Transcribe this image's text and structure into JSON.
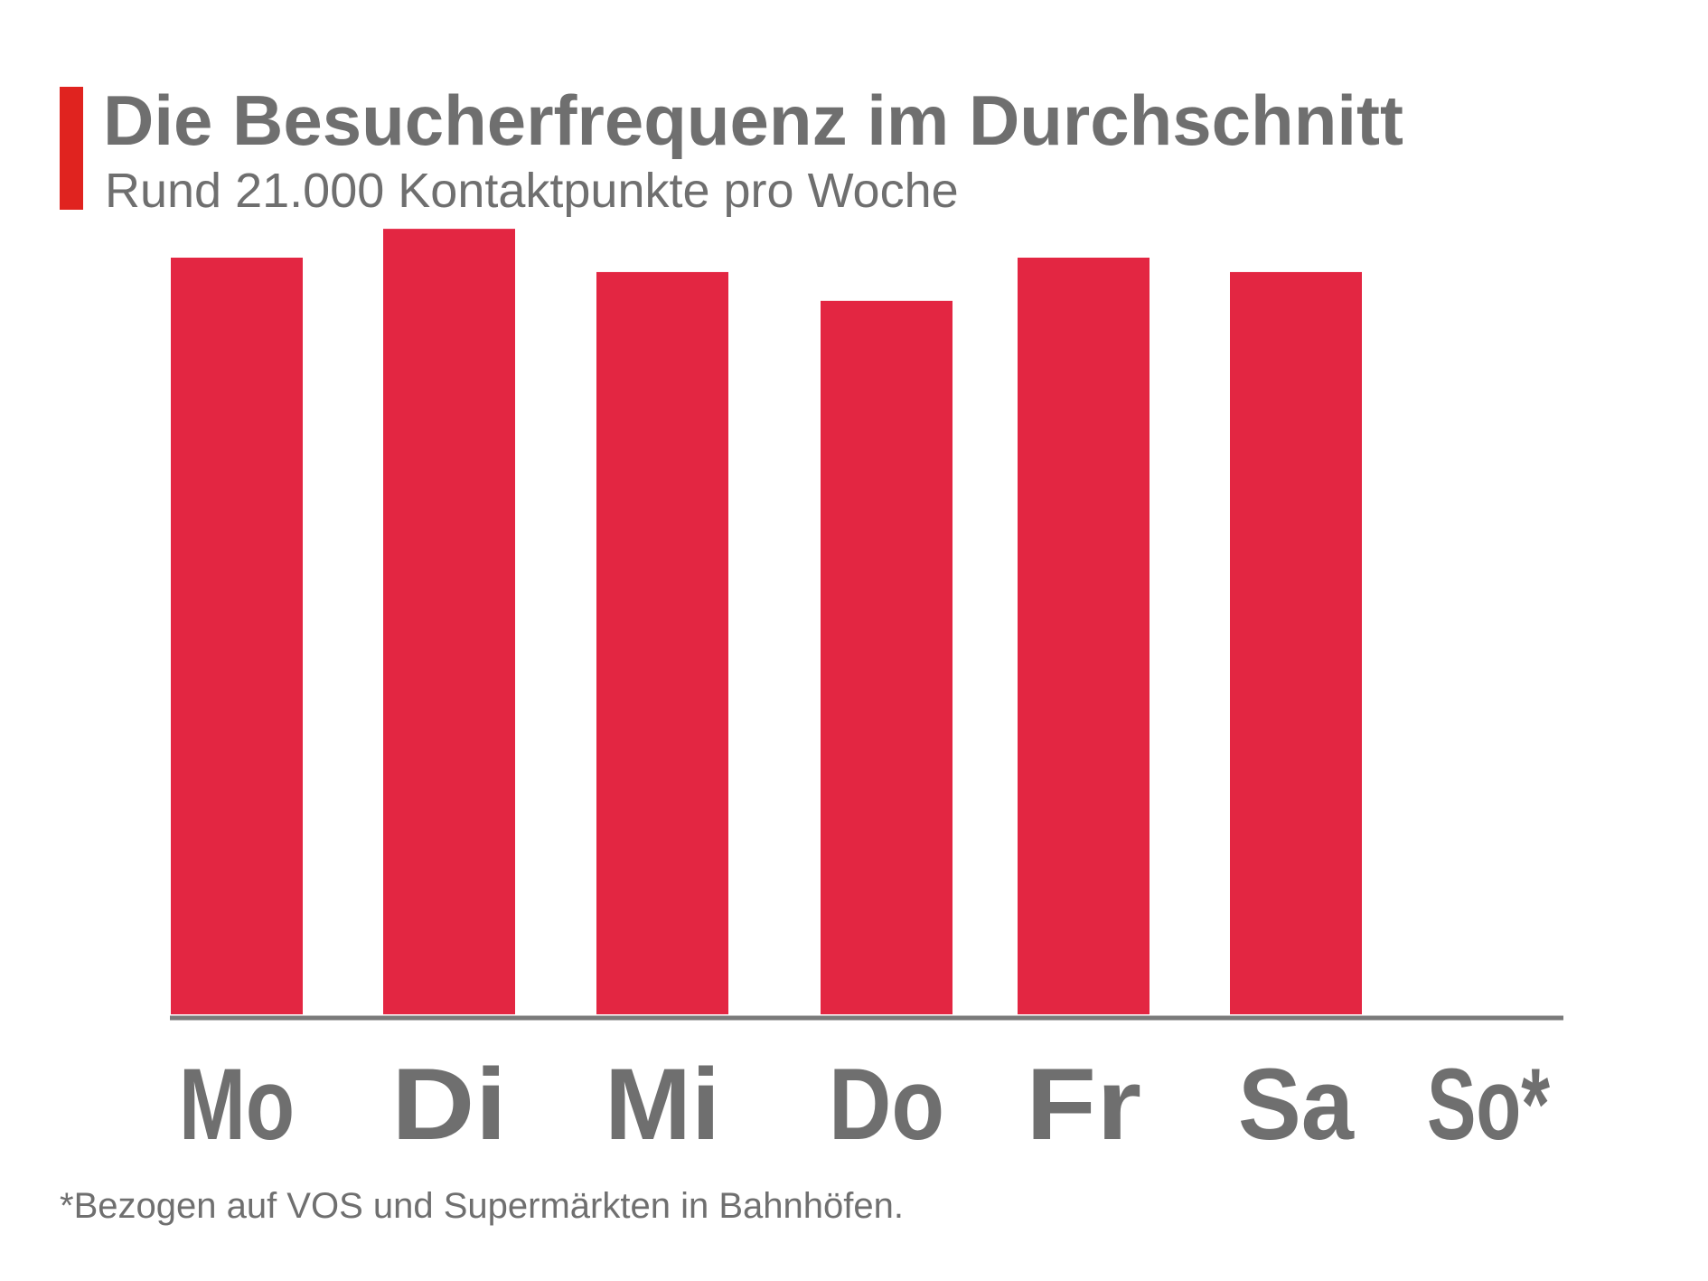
{
  "header": {
    "title": "Die Besucherfrequenz im Durchschnitt",
    "subtitle": "Rund 21.000 Kontaktpunkte pro Woche"
  },
  "footnote": "*Bezogen auf VOS und Supermärkten in Bahnhöfen.",
  "colors": {
    "accent": "#e0231f",
    "bar": "#e32642",
    "text": "#6f6f6f",
    "axis": "#7a7a7a"
  },
  "chart_data": {
    "type": "bar",
    "categories": [
      "Mo",
      "Di",
      "Mi",
      "Do",
      "Fr",
      "Sa",
      "So*"
    ],
    "values": [
      3150,
      3270,
      3090,
      2970,
      3150,
      3090,
      null
    ],
    "title": "Die Besucherfrequenz im Durchschnitt",
    "subtitle": "Rund 21.000 Kontaktpunkte pro Woche",
    "xlabel": "",
    "ylabel": "",
    "ylim": [
      0,
      3500
    ],
    "grid": false,
    "legend": "none"
  }
}
